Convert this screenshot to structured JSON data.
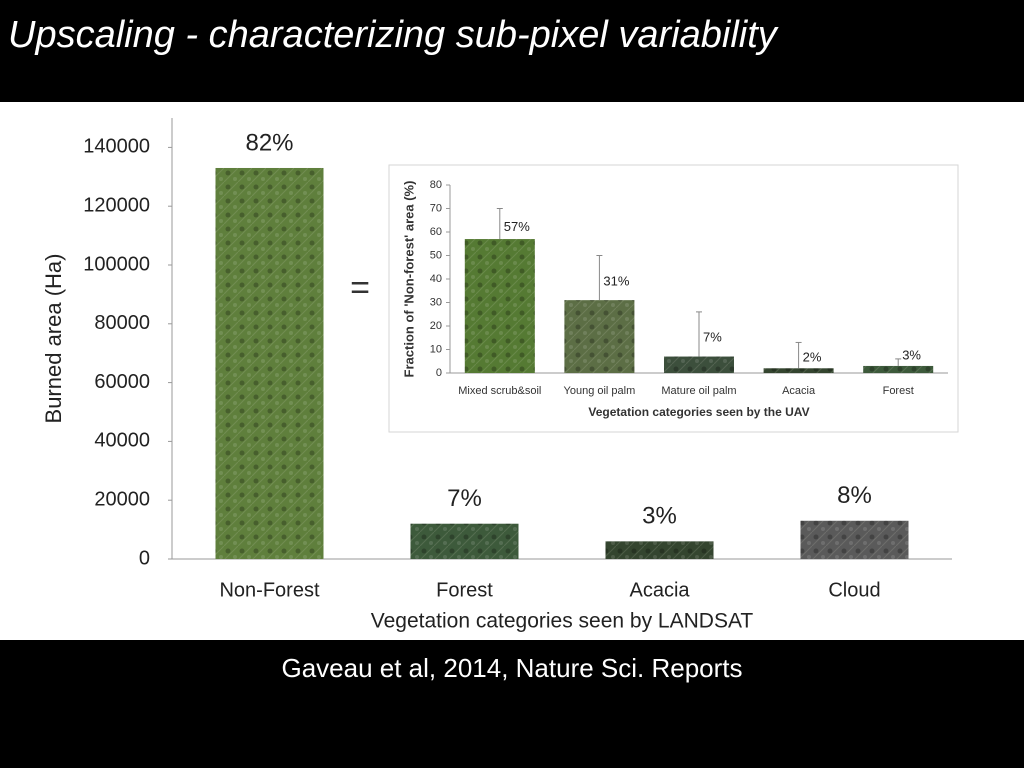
{
  "title": "Upscaling - characterizing sub-pixel variability",
  "caption": "Gaveau et al, 2014, Nature Sci. Reports",
  "connector": "=",
  "chart_data": [
    {
      "type": "bar",
      "categories": [
        "Non-Forest",
        "Forest",
        "Acacia",
        "Cloud"
      ],
      "values": [
        133000,
        12000,
        6000,
        13000
      ],
      "annotations": [
        "82%",
        "7%",
        "3%",
        "8%"
      ],
      "colors": [
        "#5f7f3c",
        "#3d5a3b",
        "#34452f",
        "#5a5a5a"
      ],
      "x_label": "Vegetation categories seen by LANDSAT",
      "y_label": "Burned area (Ha)",
      "ylim": [
        0,
        150000
      ],
      "yticks": [
        0,
        20000,
        40000,
        60000,
        80000,
        100000,
        120000,
        140000
      ]
    },
    {
      "type": "bar",
      "categories": [
        "Mixed scrub&soil",
        "Young oil palm",
        "Mature oil palm",
        "Acacia",
        "Forest"
      ],
      "values": [
        57,
        31,
        7,
        2,
        3
      ],
      "value_labels": [
        "57%",
        "31%",
        "7%",
        "2%",
        "3%"
      ],
      "errors": [
        13,
        19,
        19,
        11,
        3
      ],
      "colors": [
        "#557a33",
        "#5c6e45",
        "#3c4f3c",
        "#34452f",
        "#3d5a3b"
      ],
      "x_label": "Vegetation categories seen by the UAV",
      "y_label": "Fraction of 'Non-forest' area (%)",
      "ylim": [
        0,
        80
      ],
      "yticks": [
        0,
        10,
        20,
        30,
        40,
        50,
        60,
        70,
        80
      ]
    }
  ]
}
